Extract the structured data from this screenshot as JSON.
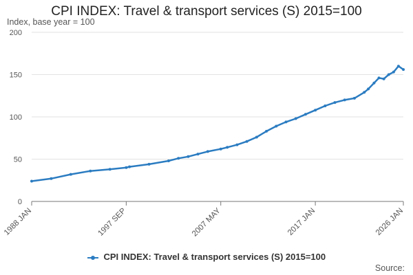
{
  "chart_data": {
    "type": "line",
    "title": "CPI INDEX: Travel & transport services (S) 2015=100",
    "ylabel": "Index, base year = 100",
    "xlabel": "",
    "ylim": [
      0,
      200
    ],
    "y_ticks": [
      0,
      50,
      100,
      150,
      200
    ],
    "x_tick_labels": [
      "1988 JAN",
      "1997 SEP",
      "2007 MAY",
      "2017 JAN",
      "2026 JAN"
    ],
    "legend": "bottom-center",
    "grid": true,
    "series": [
      {
        "name": "CPI INDEX: Travel & transport services (S) 2015=100",
        "color": "#2b7cc1",
        "x": [
          "1988 JAN",
          "1990 JAN",
          "1992 JAN",
          "1994 JAN",
          "1996 JAN",
          "1997 SEP",
          "1998 JAN",
          "2000 JAN",
          "2002 JAN",
          "2003 JAN",
          "2004 JAN",
          "2005 JAN",
          "2006 JAN",
          "2007 MAY",
          "2008 JAN",
          "2009 JAN",
          "2010 JAN",
          "2011 JAN",
          "2012 JAN",
          "2013 JAN",
          "2014 JAN",
          "2015 JAN",
          "2016 JAN",
          "2017 JAN",
          "2018 JAN",
          "2019 JAN",
          "2020 JAN",
          "2021 JAN",
          "2022 JAN",
          "2022 JUN",
          "2023 JAN",
          "2023 JUL",
          "2024 JAN",
          "2024 JUL",
          "2025 JAN",
          "2025 JUL",
          "2026 JAN"
        ],
        "values": [
          24,
          27,
          32,
          36,
          38,
          40,
          41,
          44,
          48,
          51,
          53,
          56,
          59,
          62,
          64,
          67,
          71,
          76,
          83,
          89,
          94,
          98,
          103,
          108,
          113,
          117,
          120,
          122,
          129,
          133,
          140,
          146,
          145,
          150,
          153,
          160,
          156
        ]
      }
    ]
  },
  "source_label": "Source:"
}
